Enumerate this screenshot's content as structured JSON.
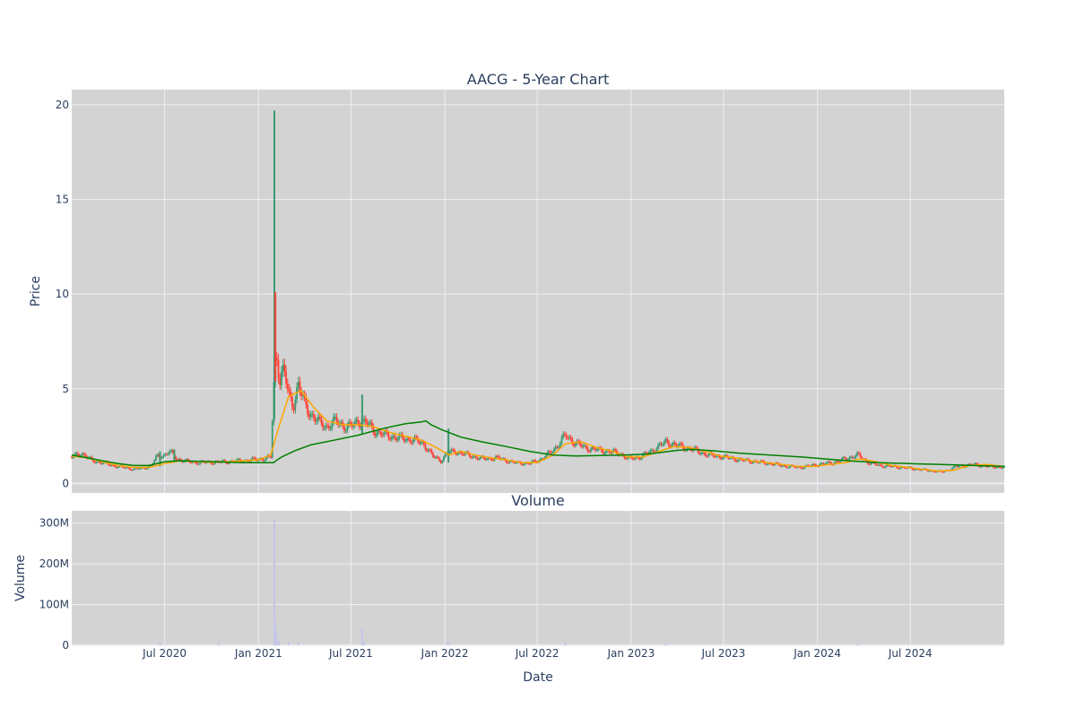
{
  "colors": {
    "plot_bg": "#d3d3d3",
    "grid": "#ebeff5",
    "text": "#2a3f5f",
    "increasing": "#3d9970",
    "decreasing": "#ff4136",
    "ma_short": "#ffa500",
    "ma_long": "#008000",
    "volume_bar": "#c6c6e8"
  },
  "chart_data": [
    {
      "type": "candlestick",
      "title": "AACG - 5-Year Chart",
      "xlabel": "",
      "ylabel": "Price",
      "xlim": [
        "2020-01-01",
        "2025-01-01"
      ],
      "ylim": [
        -0.5,
        20.8
      ],
      "y_ticks": [
        0,
        5,
        10,
        15,
        20
      ],
      "grid": true,
      "series": [
        {
          "points": [
            [
              "2020-01-01",
              1.4
            ],
            [
              "2020-01-20",
              1.6
            ],
            [
              "2020-02-10",
              1.2
            ],
            [
              "2020-03-01",
              1.1
            ],
            [
              "2020-03-20",
              0.95
            ],
            [
              "2020-04-10",
              0.85
            ],
            [
              "2020-05-01",
              0.75
            ],
            [
              "2020-05-20",
              0.8
            ],
            [
              "2020-06-05",
              0.95
            ],
            [
              "2020-06-15",
              1.4
            ],
            [
              "2020-07-01",
              1.5
            ],
            [
              "2020-07-10",
              1.7
            ],
            [
              "2020-07-25",
              1.3
            ],
            [
              "2020-08-15",
              1.15
            ],
            [
              "2020-09-05",
              1.1
            ],
            [
              "2020-10-01",
              1.12
            ],
            [
              "2020-11-01",
              1.15
            ],
            [
              "2020-12-01",
              1.2
            ],
            [
              "2020-12-20",
              1.25
            ],
            [
              "2021-01-10",
              1.3
            ],
            [
              "2021-01-25",
              1.4
            ],
            [
              "2021-02-01",
              5.8
            ],
            [
              "2021-02-05",
              7.0
            ],
            [
              "2021-02-12",
              5.5
            ],
            [
              "2021-02-20",
              6.0
            ],
            [
              "2021-03-01",
              4.6
            ],
            [
              "2021-03-10",
              4.2
            ],
            [
              "2021-03-20",
              5.2
            ],
            [
              "2021-04-01",
              4.2
            ],
            [
              "2021-04-15",
              3.6
            ],
            [
              "2021-05-01",
              3.2
            ],
            [
              "2021-05-15",
              3.0
            ],
            [
              "2021-06-01",
              3.3
            ],
            [
              "2021-06-20",
              3.0
            ],
            [
              "2021-07-01",
              3.0
            ],
            [
              "2021-07-15",
              3.3
            ],
            [
              "2021-08-01",
              3.2
            ],
            [
              "2021-08-15",
              2.8
            ],
            [
              "2021-09-01",
              2.6
            ],
            [
              "2021-10-01",
              2.4
            ],
            [
              "2021-11-01",
              2.3
            ],
            [
              "2021-11-20",
              2.1
            ],
            [
              "2021-12-10",
              1.4
            ],
            [
              "2021-12-25",
              1.2
            ],
            [
              "2022-01-05",
              1.6
            ],
            [
              "2022-01-20",
              1.7
            ],
            [
              "2022-02-15",
              1.5
            ],
            [
              "2022-03-15",
              1.3
            ],
            [
              "2022-04-15",
              1.35
            ],
            [
              "2022-05-15",
              1.1
            ],
            [
              "2022-06-15",
              1.05
            ],
            [
              "2022-07-10",
              1.3
            ],
            [
              "2022-07-25",
              1.6
            ],
            [
              "2022-08-10",
              2.0
            ],
            [
              "2022-08-25",
              2.55
            ],
            [
              "2022-09-10",
              2.2
            ],
            [
              "2022-10-01",
              1.9
            ],
            [
              "2022-10-20",
              1.8
            ],
            [
              "2022-11-15",
              1.7
            ],
            [
              "2022-12-10",
              1.6
            ],
            [
              "2022-12-25",
              1.3
            ],
            [
              "2023-01-20",
              1.4
            ],
            [
              "2023-02-15",
              1.8
            ],
            [
              "2023-03-10",
              2.2
            ],
            [
              "2023-04-01",
              2.0
            ],
            [
              "2023-05-01",
              1.8
            ],
            [
              "2023-06-01",
              1.5
            ],
            [
              "2023-07-01",
              1.4
            ],
            [
              "2023-08-01",
              1.25
            ],
            [
              "2023-09-01",
              1.15
            ],
            [
              "2023-10-01",
              1.05
            ],
            [
              "2023-11-01",
              0.9
            ],
            [
              "2023-12-01",
              0.85
            ],
            [
              "2024-01-01",
              1.0
            ],
            [
              "2024-02-01",
              1.1
            ],
            [
              "2024-03-01",
              1.35
            ],
            [
              "2024-03-20",
              1.5
            ],
            [
              "2024-04-10",
              1.1
            ],
            [
              "2024-05-01",
              0.95
            ],
            [
              "2024-06-01",
              0.88
            ],
            [
              "2024-07-01",
              0.8
            ],
            [
              "2024-08-01",
              0.7
            ],
            [
              "2024-09-01",
              0.6
            ],
            [
              "2024-10-01",
              0.9
            ],
            [
              "2024-11-01",
              1.0
            ],
            [
              "2024-12-01",
              0.9
            ],
            [
              "2025-01-01",
              0.85
            ]
          ],
          "spikes": [
            {
              "date": "2021-02-01",
              "low": 3.4,
              "high": 19.7
            },
            {
              "date": "2021-07-23",
              "low": 2.6,
              "high": 4.7
            },
            {
              "date": "2022-01-08",
              "low": 1.1,
              "high": 2.9
            },
            {
              "date": "2020-06-22",
              "low": 0.9,
              "high": 1.7
            },
            {
              "date": "2020-07-20",
              "low": 1.1,
              "high": 1.8
            }
          ]
        },
        {
          "type": "line",
          "points": [
            [
              "2020-01-01",
              1.45
            ],
            [
              "2020-02-01",
              1.35
            ],
            [
              "2020-03-01",
              1.15
            ],
            [
              "2020-04-01",
              0.95
            ],
            [
              "2020-05-01",
              0.85
            ],
            [
              "2020-06-01",
              0.85
            ],
            [
              "2020-07-01",
              1.05
            ],
            [
              "2020-08-01",
              1.2
            ],
            [
              "2020-09-01",
              1.15
            ],
            [
              "2020-10-01",
              1.12
            ],
            [
              "2020-11-01",
              1.15
            ],
            [
              "2020-12-01",
              1.2
            ],
            [
              "2021-01-01",
              1.25
            ],
            [
              "2021-01-25",
              1.5
            ],
            [
              "2021-02-10",
              3.0
            ],
            [
              "2021-03-01",
              4.6
            ],
            [
              "2021-03-25",
              4.9
            ],
            [
              "2021-04-20",
              4.0
            ],
            [
              "2021-05-15",
              3.3
            ],
            [
              "2021-06-15",
              3.1
            ],
            [
              "2021-07-15",
              3.1
            ],
            [
              "2021-08-15",
              3.0
            ],
            [
              "2021-09-15",
              2.7
            ],
            [
              "2021-10-15",
              2.5
            ],
            [
              "2021-11-15",
              2.3
            ],
            [
              "2021-12-15",
              1.9
            ],
            [
              "2022-01-10",
              1.5
            ],
            [
              "2022-02-01",
              1.7
            ],
            [
              "2022-03-01",
              1.5
            ],
            [
              "2022-04-01",
              1.35
            ],
            [
              "2022-05-01",
              1.25
            ],
            [
              "2022-06-01",
              1.1
            ],
            [
              "2022-07-01",
              1.1
            ],
            [
              "2022-08-01",
              1.5
            ],
            [
              "2022-08-25",
              2.1
            ],
            [
              "2022-09-25",
              2.2
            ],
            [
              "2022-10-25",
              1.9
            ],
            [
              "2022-11-25",
              1.7
            ],
            [
              "2022-12-25",
              1.4
            ],
            [
              "2023-01-25",
              1.4
            ],
            [
              "2023-02-25",
              1.7
            ],
            [
              "2023-03-25",
              1.95
            ],
            [
              "2023-04-25",
              1.9
            ],
            [
              "2023-05-25",
              1.7
            ],
            [
              "2023-06-25",
              1.45
            ],
            [
              "2023-07-25",
              1.35
            ],
            [
              "2023-08-25",
              1.2
            ],
            [
              "2023-09-25",
              1.1
            ],
            [
              "2023-10-25",
              1.0
            ],
            [
              "2023-11-25",
              0.9
            ],
            [
              "2023-12-25",
              0.9
            ],
            [
              "2024-01-25",
              1.0
            ],
            [
              "2024-02-25",
              1.1
            ],
            [
              "2024-03-25",
              1.3
            ],
            [
              "2024-04-25",
              1.15
            ],
            [
              "2024-05-25",
              0.95
            ],
            [
              "2024-06-25",
              0.85
            ],
            [
              "2024-07-25",
              0.75
            ],
            [
              "2024-08-25",
              0.65
            ],
            [
              "2024-09-25",
              0.7
            ],
            [
              "2024-10-25",
              0.95
            ],
            [
              "2024-11-25",
              1.0
            ],
            [
              "2025-01-01",
              0.9
            ]
          ]
        },
        {
          "type": "line",
          "points": [
            [
              "2020-01-01",
              1.5
            ],
            [
              "2020-02-01",
              1.35
            ],
            [
              "2020-03-01",
              1.2
            ],
            [
              "2020-04-01",
              1.05
            ],
            [
              "2020-05-01",
              0.95
            ],
            [
              "2020-06-01",
              0.95
            ],
            [
              "2020-07-01",
              1.15
            ],
            [
              "2020-08-01",
              1.2
            ],
            [
              "2020-10-01",
              1.15
            ],
            [
              "2020-12-01",
              1.1
            ],
            [
              "2021-01-30",
              1.1
            ],
            [
              "2021-02-15",
              1.4
            ],
            [
              "2021-03-15",
              1.75
            ],
            [
              "2021-04-15",
              2.05
            ],
            [
              "2021-06-01",
              2.3
            ],
            [
              "2021-07-15",
              2.55
            ],
            [
              "2021-09-01",
              2.9
            ],
            [
              "2021-10-15",
              3.15
            ],
            [
              "2021-11-15",
              3.25
            ],
            [
              "2021-11-25",
              3.3
            ],
            [
              "2021-12-05",
              3.1
            ],
            [
              "2021-12-25",
              2.85
            ],
            [
              "2022-02-01",
              2.45
            ],
            [
              "2022-03-15",
              2.2
            ],
            [
              "2022-05-01",
              1.95
            ],
            [
              "2022-06-15",
              1.7
            ],
            [
              "2022-08-01",
              1.5
            ],
            [
              "2022-09-15",
              1.45
            ],
            [
              "2022-11-01",
              1.48
            ],
            [
              "2022-12-15",
              1.5
            ],
            [
              "2023-02-01",
              1.55
            ],
            [
              "2023-04-01",
              1.75
            ],
            [
              "2023-05-01",
              1.8
            ],
            [
              "2023-06-15",
              1.72
            ],
            [
              "2023-08-01",
              1.6
            ],
            [
              "2023-10-01",
              1.5
            ],
            [
              "2023-12-01",
              1.4
            ],
            [
              "2024-01-15",
              1.3
            ],
            [
              "2024-03-01",
              1.2
            ],
            [
              "2024-05-01",
              1.1
            ],
            [
              "2024-07-01",
              1.05
            ],
            [
              "2024-09-01",
              1.0
            ],
            [
              "2024-11-01",
              0.95
            ],
            [
              "2025-01-01",
              0.9
            ]
          ]
        }
      ]
    },
    {
      "type": "bar",
      "title": "Volume",
      "xlabel": "Date",
      "ylabel": "Volume",
      "xlim": [
        "2020-01-01",
        "2025-01-01"
      ],
      "ylim": [
        0,
        330
      ],
      "y_ticks": [
        0,
        100,
        200,
        300
      ],
      "y_tick_labels": [
        "0",
        "100M",
        "200M",
        "300M"
      ],
      "x_ticks": [
        "2020-07-01",
        "2021-01-01",
        "2021-07-01",
        "2022-01-01",
        "2022-07-01",
        "2023-01-01",
        "2023-07-01",
        "2024-01-01",
        "2024-07-01"
      ],
      "x_tick_labels": [
        "Jul 2020",
        "Jan 2021",
        "Jul 2021",
        "Jan 2022",
        "Jul 2022",
        "Jan 2023",
        "Jul 2023",
        "Jan 2024",
        "Jul 2024"
      ],
      "grid": true,
      "series": [
        {
          "points": [
            [
              "2021-02-01",
              310
            ],
            [
              "2021-02-03",
              60
            ],
            [
              "2021-02-05",
              25
            ],
            [
              "2021-02-10",
              12
            ],
            [
              "2021-03-01",
              8
            ],
            [
              "2021-03-20",
              6
            ],
            [
              "2021-07-23",
              42
            ],
            [
              "2021-07-26",
              10
            ],
            [
              "2022-01-07",
              10
            ],
            [
              "2020-06-22",
              4
            ],
            [
              "2020-10-15",
              3
            ],
            [
              "2022-08-25",
              5
            ],
            [
              "2023-03-10",
              4
            ],
            [
              "2024-03-20",
              3
            ]
          ]
        }
      ]
    }
  ]
}
